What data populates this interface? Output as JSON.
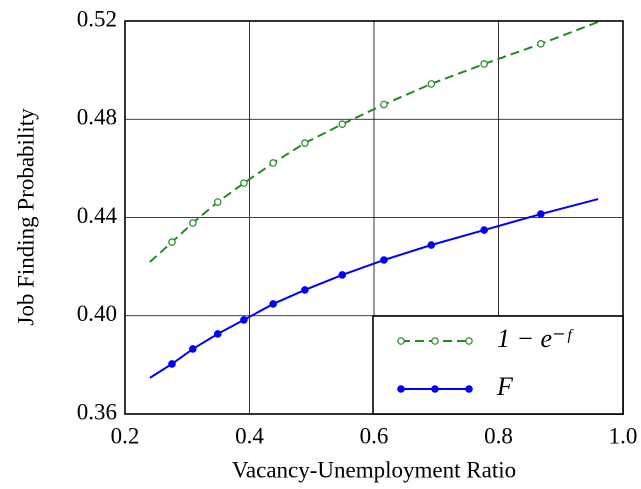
{
  "chart_data": {
    "type": "line",
    "xlabel": "Vacancy-Unemployment Ratio",
    "ylabel": "Job Finding Probability",
    "xlim": [
      0.2,
      1.0
    ],
    "ylim": [
      0.36,
      0.52
    ],
    "xticks": [
      0.2,
      0.4,
      0.6,
      0.8,
      {
        "value": 1,
        "label": "1.0"
      }
    ],
    "yticks": [
      0.36,
      {
        "value": 0.4,
        "label": "0.40"
      },
      0.44,
      0.48,
      0.52
    ],
    "grid": true,
    "legend": "lower right",
    "series": [
      {
        "name": "1 − e⁻ᶠ",
        "color": "#228b22",
        "dash": true,
        "marker": "open",
        "x": [
          0.24,
          0.2755,
          0.309,
          0.349,
          0.391,
          0.438,
          0.489,
          0.549,
          0.616,
          0.692,
          0.777,
          0.868,
          0.96
        ],
        "values": [
          0.4219,
          0.43,
          0.4378,
          0.4463,
          0.454,
          0.4622,
          0.4703,
          0.478,
          0.486,
          0.4944,
          0.5025,
          0.5107,
          0.5196
        ]
      },
      {
        "name": "F",
        "color": "#0000ff",
        "dash": false,
        "marker": "filled",
        "x": [
          0.24,
          0.2755,
          0.309,
          0.349,
          0.391,
          0.438,
          0.489,
          0.549,
          0.616,
          0.692,
          0.777,
          0.868,
          0.96
        ],
        "values": [
          0.3747,
          0.3804,
          0.3865,
          0.3926,
          0.3983,
          0.4048,
          0.4105,
          0.4166,
          0.4227,
          0.4288,
          0.4349,
          0.4414,
          0.4475
        ]
      }
    ]
  }
}
